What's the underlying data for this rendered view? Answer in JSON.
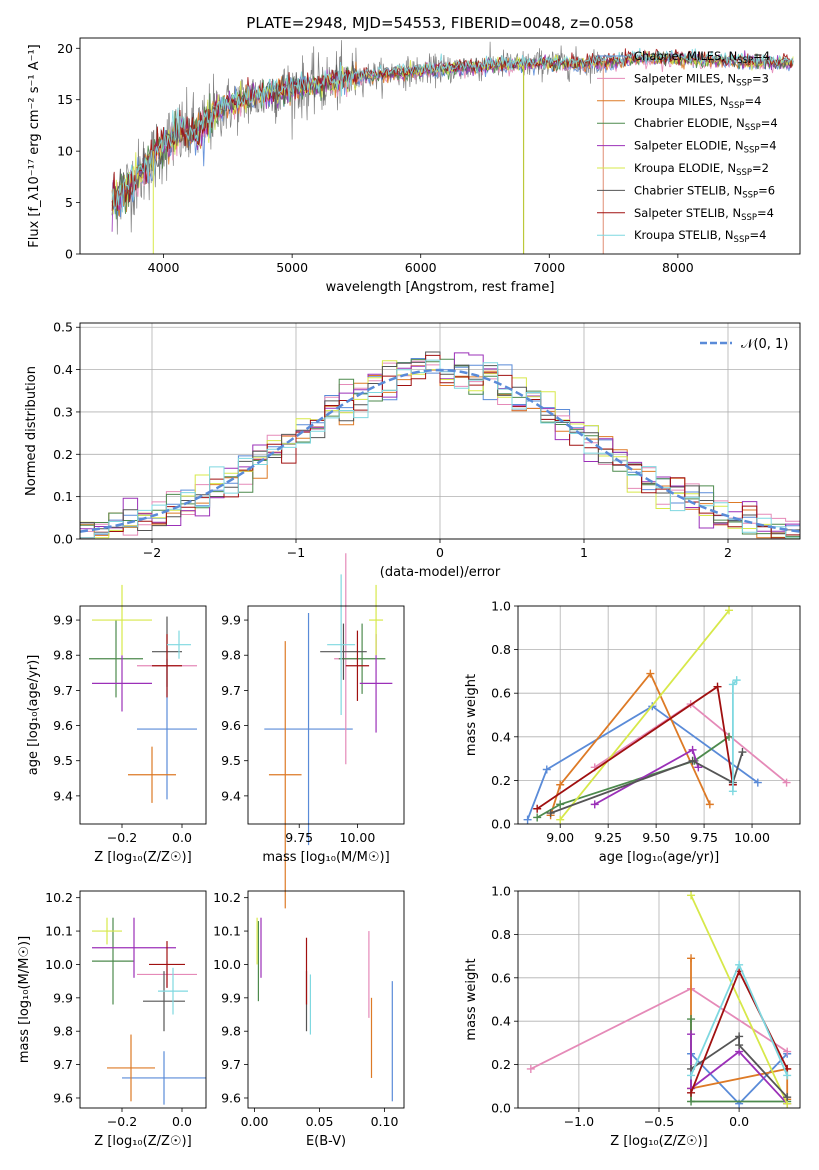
{
  "figure_title": "PLATE=2948, MJD=54553, FIBERID=0048, z=0.058",
  "chart_data": [
    {
      "id": "spectrum",
      "type": "line",
      "xlabel": "wavelength [Angstrom, rest frame]",
      "ylabel": "Flux [f_λ10⁻¹⁷ erg cm⁻² s⁻¹ A⁻¹]",
      "xlim": [
        3350,
        8950
      ],
      "ylim": [
        0,
        21
      ],
      "xticks": [
        4000,
        5000,
        6000,
        7000,
        8000
      ],
      "yticks": [
        0,
        5,
        10,
        15,
        20
      ],
      "legend_position": "top-right",
      "note": "Observed spectrum (grey) approx. rising from ~5 at 3600 A to ~18.5 at 7000 A; model curves overplotted",
      "data_x": [
        3600,
        3700,
        3800,
        3900,
        4000,
        4100,
        4200,
        4300,
        4400,
        4500,
        4700,
        4900,
        5100,
        5300,
        5500,
        5800,
        6000,
        6200,
        6400,
        6600,
        6800,
        7000,
        7200,
        7400,
        7700,
        8000,
        8300,
        8900
      ],
      "data_y": [
        5.2,
        6.2,
        7.5,
        9.0,
        10.6,
        11.5,
        11.8,
        12.2,
        13.8,
        14.4,
        15.2,
        15.8,
        16.2,
        16.7,
        17.2,
        17.6,
        17.8,
        18.0,
        18.2,
        18.4,
        18.4,
        18.6,
        18.5,
        18.6,
        19.0,
        19.0,
        18.8,
        18.6
      ],
      "series": [
        {
          "name": "Chabrier MILES, N_SSP=4",
          "legend_main": "Chabrier MILES, N",
          "legend_sub": "SSP",
          "legend_tail": "=4",
          "color": "#5a8bd8"
        },
        {
          "name": "Salpeter MILES, N_SSP=3",
          "legend_main": "Salpeter MILES, N",
          "legend_sub": "SSP",
          "legend_tail": "=3",
          "color": "#e58ab8"
        },
        {
          "name": "Kroupa MILES, N_SSP=4",
          "legend_main": "Kroupa MILES, N",
          "legend_sub": "SSP",
          "legend_tail": "=4",
          "color": "#dd7a26"
        },
        {
          "name": "Chabrier ELODIE, N_SSP=4",
          "legend_main": "Chabrier ELODIE, N",
          "legend_sub": "SSP",
          "legend_tail": "=4",
          "color": "#4d8a4d"
        },
        {
          "name": "Salpeter ELODIE, N_SSP=4",
          "legend_main": "Salpeter ELODIE, N",
          "legend_sub": "SSP",
          "legend_tail": "=4",
          "color": "#9b30b8"
        },
        {
          "name": "Kroupa ELODIE, N_SSP=2",
          "legend_main": "Kroupa ELODIE, N",
          "legend_sub": "SSP",
          "legend_tail": "=2",
          "color": "#d7e84a"
        },
        {
          "name": "Chabrier STELIB, N_SSP=6",
          "legend_main": "Chabrier STELIB, N",
          "legend_sub": "SSP",
          "legend_tail": "=6",
          "color": "#555555"
        },
        {
          "name": "Salpeter STELIB, N_SSP=4",
          "legend_main": "Salpeter STELIB, N",
          "legend_sub": "SSP",
          "legend_tail": "=4",
          "color": "#a01010"
        },
        {
          "name": "Kroupa STELIB, N_SSP=4",
          "legend_main": "Kroupa STELIB, N",
          "legend_sub": "SSP",
          "legend_tail": "=4",
          "color": "#7fd8e0"
        }
      ]
    },
    {
      "id": "residuals",
      "type": "bar",
      "xlabel": "(data-model)/error",
      "ylabel": "Normed distribution",
      "xlim": [
        -2.5,
        2.5
      ],
      "ylim": [
        0,
        0.51
      ],
      "xticks": [
        -2,
        -1,
        0,
        1,
        2
      ],
      "yticks": [
        0.0,
        0.1,
        0.2,
        0.3,
        0.4,
        0.5
      ],
      "grid": true,
      "legend_label": "𝒩(0, 1)",
      "legend_position": "top-right",
      "gaussian": {
        "mu": 0,
        "sigma": 1,
        "color": "#5a8bd8"
      },
      "bin_width": 0.1,
      "bin_start": -2.5
    },
    {
      "id": "z_age",
      "type": "scatter",
      "xlabel": "Z [log₁₀(Z/Z☉)]",
      "ylabel": "age  [log₁₀(age/yr)]",
      "xlim": [
        -0.34,
        0.08
      ],
      "ylim": [
        9.32,
        9.94
      ],
      "xticks": [
        -0.2,
        0.0
      ],
      "xticklabels": [
        "−0.2",
        "0.0"
      ],
      "yticks": [
        9.4,
        9.5,
        9.6,
        9.7,
        9.8,
        9.9
      ],
      "points": [
        {
          "x": -0.05,
          "y": 9.59,
          "xerr": 0.1,
          "yerr": 0.2
        },
        {
          "x": -0.05,
          "y": 9.77,
          "xerr": 0.1,
          "yerr": 0.0
        },
        {
          "x": -0.1,
          "y": 9.46,
          "xerr": 0.08,
          "yerr": 0.08
        },
        {
          "x": -0.22,
          "y": 9.79,
          "xerr": 0.09,
          "yerr": 0.11
        },
        {
          "x": -0.2,
          "y": 9.72,
          "xerr": 0.1,
          "yerr": 0.08
        },
        {
          "x": -0.2,
          "y": 9.9,
          "xerr": 0.1,
          "yerr": 0.1
        },
        {
          "x": -0.05,
          "y": 9.81,
          "xerr": 0.05,
          "yerr": 0.1
        },
        {
          "x": -0.05,
          "y": 9.77,
          "xerr": 0.05,
          "yerr": 0.09
        },
        {
          "x": -0.01,
          "y": 9.83,
          "xerr": 0.04,
          "yerr": 0.04
        }
      ]
    },
    {
      "id": "mass_age",
      "type": "scatter",
      "xlabel": "mass [log₁₀(M/M☉)]",
      "ylabel": "",
      "xlim": [
        9.53,
        10.2
      ],
      "ylim": [
        9.32,
        9.94
      ],
      "xticks": [
        9.75,
        10.0
      ],
      "xticklabels": [
        "9.75",
        "10.00"
      ],
      "yticks": [
        9.4,
        9.5,
        9.6,
        9.7,
        9.8,
        9.9
      ],
      "points": [
        {
          "x": 9.79,
          "y": 9.59,
          "xerr": 0.19,
          "yerr": 0.33
        },
        {
          "x": 9.95,
          "y": 9.79,
          "xerr": 0.05,
          "yerr": 0.3
        },
        {
          "x": 9.69,
          "y": 9.46,
          "xerr": 0.07,
          "yerr": 0.38
        },
        {
          "x": 10.02,
          "y": 9.79,
          "xerr": 0.1,
          "yerr": 0.1
        },
        {
          "x": 10.08,
          "y": 9.72,
          "xerr": 0.07,
          "yerr": 0.14
        },
        {
          "x": 10.08,
          "y": 9.9,
          "xerr": 0.03,
          "yerr": 0.1
        },
        {
          "x": 9.94,
          "y": 9.81,
          "xerr": 0.1,
          "yerr": 0.08
        },
        {
          "x": 10.0,
          "y": 9.77,
          "xerr": 0.05,
          "yerr": 0.1
        },
        {
          "x": 9.93,
          "y": 9.83,
          "xerr": 0.06,
          "yerr": 0.2
        }
      ]
    },
    {
      "id": "weight_age",
      "type": "line",
      "xlabel": "age  [log₁₀(age/yr)]",
      "ylabel": "mass weight",
      "xlim": [
        8.78,
        10.25
      ],
      "ylim": [
        0,
        1
      ],
      "xticks": [
        9.0,
        9.25,
        9.5,
        9.75,
        10.0
      ],
      "xticklabels": [
        "9.00",
        "9.25",
        "9.50",
        "9.75",
        "10.00"
      ],
      "yticks": [
        0,
        0.2,
        0.4,
        0.6,
        0.8,
        1.0
      ],
      "yticklabels": [
        "0.0",
        "0.2",
        "0.4",
        "0.6",
        "0.8",
        "1.0"
      ],
      "grid": true,
      "series": [
        {
          "x": [
            8.83,
            8.93,
            9.48,
            10.03
          ],
          "y": [
            0.02,
            0.25,
            0.54,
            0.19
          ]
        },
        {
          "x": [
            9.18,
            9.68,
            10.18
          ],
          "y": [
            0.26,
            0.55,
            0.19
          ]
        },
        {
          "x": [
            8.95,
            9.0,
            9.47,
            9.78
          ],
          "y": [
            0.04,
            0.18,
            0.69,
            0.09
          ]
        },
        {
          "x": [
            8.88,
            9.0,
            9.7,
            9.88
          ],
          "y": [
            0.03,
            0.09,
            0.29,
            0.4
          ]
        },
        {
          "x": [
            9.18,
            9.69,
            9.72
          ],
          "y": [
            0.09,
            0.34,
            0.26
          ]
        },
        {
          "x": [
            9.0,
            9.88
          ],
          "y": [
            0.02,
            0.98
          ]
        },
        {
          "x": [
            8.95,
            9.69,
            9.9,
            9.95
          ],
          "y": [
            0.05,
            0.29,
            0.19,
            0.33
          ]
        },
        {
          "x": [
            8.88,
            9.82,
            9.9
          ],
          "y": [
            0.07,
            0.63,
            0.18
          ]
        },
        {
          "x": [
            9.9,
            9.9,
            9.92
          ],
          "y": [
            0.15,
            0.64,
            0.66
          ]
        }
      ]
    },
    {
      "id": "z_mass",
      "type": "scatter",
      "xlabel": "Z [log₁₀(Z/Z☉)]",
      "ylabel": "mass [log₁₀(M/M☉)]",
      "xlim": [
        -0.34,
        0.08
      ],
      "ylim": [
        9.57,
        10.22
      ],
      "xticks": [
        -0.2,
        0.0
      ],
      "xticklabels": [
        "−0.2",
        "0.0"
      ],
      "yticks": [
        9.6,
        9.7,
        9.8,
        9.9,
        10.0,
        10.1,
        10.2
      ],
      "points": [
        {
          "x": -0.06,
          "y": 9.66,
          "xerr": 0.14,
          "yerr": 0.08
        },
        {
          "x": -0.05,
          "y": 9.97,
          "xerr": 0.1,
          "yerr": 0.04
        },
        {
          "x": -0.17,
          "y": 9.69,
          "xerr": 0.08,
          "yerr": 0.1
        },
        {
          "x": -0.23,
          "y": 10.01,
          "xerr": 0.07,
          "yerr": 0.13
        },
        {
          "x": -0.16,
          "y": 10.05,
          "xerr": 0.14,
          "yerr": 0.09
        },
        {
          "x": -0.25,
          "y": 10.1,
          "xerr": 0.05,
          "yerr": 0.04
        },
        {
          "x": -0.06,
          "y": 9.89,
          "xerr": 0.07,
          "yerr": 0.09
        },
        {
          "x": -0.05,
          "y": 10.0,
          "xerr": 0.06,
          "yerr": 0.07
        },
        {
          "x": -0.03,
          "y": 9.92,
          "xerr": 0.05,
          "yerr": 0.07
        }
      ]
    },
    {
      "id": "ebv_mass",
      "type": "scatter",
      "xlabel": "E(B-V)",
      "ylabel": "",
      "xlim": [
        -0.005,
        0.115
      ],
      "ylim": [
        9.57,
        10.22
      ],
      "xticks": [
        0.0,
        0.05,
        0.1
      ],
      "xticklabels": [
        "0.00",
        "0.05",
        "0.10"
      ],
      "yticks": [
        9.6,
        9.7,
        9.8,
        9.9,
        10.0,
        10.1,
        10.2
      ],
      "points": [
        {
          "x": 0.106,
          "y": 9.77,
          "xerr": 0,
          "yerr": 0.18
        },
        {
          "x": 0.088,
          "y": 9.97,
          "xerr": 0,
          "yerr": 0.13
        },
        {
          "x": 0.09,
          "y": 9.78,
          "xerr": 0,
          "yerr": 0.12
        },
        {
          "x": 0.003,
          "y": 10.01,
          "xerr": 0,
          "yerr": 0.12
        },
        {
          "x": 0.005,
          "y": 10.05,
          "xerr": 0,
          "yerr": 0.09
        },
        {
          "x": 0.002,
          "y": 10.07,
          "xerr": 0,
          "yerr": 0.07
        },
        {
          "x": 0.04,
          "y": 9.89,
          "xerr": 0,
          "yerr": 0.09
        },
        {
          "x": 0.04,
          "y": 9.98,
          "xerr": 0,
          "yerr": 0.1
        },
        {
          "x": 0.043,
          "y": 9.88,
          "xerr": 0,
          "yerr": 0.09
        }
      ]
    },
    {
      "id": "weight_z",
      "type": "line",
      "xlabel": "Z [log₁₀(Z/Z☉)]",
      "ylabel": "mass weight",
      "xlim": [
        -1.38,
        0.38
      ],
      "ylim": [
        0,
        1
      ],
      "xticks": [
        -1.0,
        -0.5,
        0.0
      ],
      "xticklabels": [
        "−1.0",
        "−0.5",
        "0.0"
      ],
      "yticks": [
        0,
        0.2,
        0.4,
        0.6,
        0.8,
        1.0
      ],
      "yticklabels": [
        "0.0",
        "0.2",
        "0.4",
        "0.6",
        "0.8",
        "1.0"
      ],
      "grid": true,
      "series": [
        {
          "x": [
            -0.3,
            0.0,
            0.3
          ],
          "y": [
            0.25,
            0.02,
            0.25
          ]
        },
        {
          "x": [
            -1.3,
            -0.3,
            0.3
          ],
          "y": [
            0.18,
            0.55,
            0.26
          ]
        },
        {
          "x": [
            -0.3,
            -0.3,
            0.3,
            0.3
          ],
          "y": [
            0.69,
            0.09,
            0.18,
            0.04
          ]
        },
        {
          "x": [
            -0.3,
            -0.3,
            0.3
          ],
          "y": [
            0.41,
            0.03,
            0.03
          ]
        },
        {
          "x": [
            -0.3,
            -0.3,
            0.0,
            0.3
          ],
          "y": [
            0.34,
            0.09,
            0.26,
            0.02
          ]
        },
        {
          "x": [
            -0.3,
            0.3
          ],
          "y": [
            0.98,
            0.02
          ]
        },
        {
          "x": [
            -0.3,
            0.0,
            0.0,
            0.3
          ],
          "y": [
            0.18,
            0.33,
            0.29,
            0.05
          ]
        },
        {
          "x": [
            -0.3,
            0.0,
            0.3
          ],
          "y": [
            0.07,
            0.63,
            0.18
          ]
        },
        {
          "x": [
            -0.3,
            0.0,
            0.3
          ],
          "y": [
            0.15,
            0.66,
            0.15
          ]
        }
      ]
    }
  ]
}
